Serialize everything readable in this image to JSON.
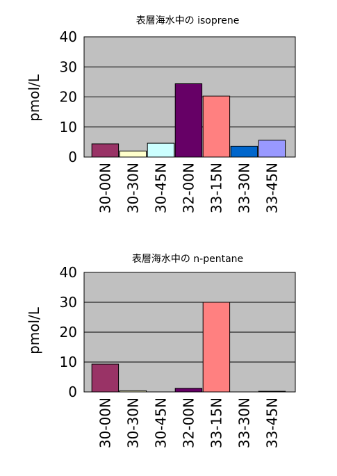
{
  "chart_data": [
    {
      "type": "bar",
      "title": "表層海水中の isoprene",
      "ylabel": "pmol/L",
      "xlabel": "",
      "ylim": [
        0,
        40
      ],
      "yticks": [
        0,
        10,
        20,
        30,
        40
      ],
      "grid": true,
      "categories": [
        "30-00N",
        "30-30N",
        "30-45N",
        "32-00N",
        "33-15N",
        "33-30N",
        "33-45N"
      ],
      "values": [
        4.4,
        2.0,
        4.6,
        24.4,
        20.3,
        3.6,
        5.6
      ],
      "colors": [
        "#993366",
        "#ffffcc",
        "#ccffff",
        "#660066",
        "#ff8080",
        "#0066cc",
        "#9999ff"
      ],
      "plot_background": "#c0c0c0"
    },
    {
      "type": "bar",
      "title": "表層海水中の n-pentane",
      "ylabel": "pmol/L",
      "xlabel": "",
      "ylim": [
        0,
        40
      ],
      "yticks": [
        0,
        10,
        20,
        30,
        40
      ],
      "grid": true,
      "categories": [
        "30-00N",
        "30-30N",
        "30-45N",
        "32-00N",
        "33-15N",
        "33-30N",
        "33-45N"
      ],
      "values": [
        9.3,
        0.4,
        0.0,
        1.2,
        30.0,
        0.0,
        0.2
      ],
      "colors": [
        "#993366",
        "#ffffcc",
        "#ccffff",
        "#660066",
        "#ff8080",
        "#0066cc",
        "#9999ff"
      ],
      "plot_background": "#c0c0c0"
    }
  ]
}
